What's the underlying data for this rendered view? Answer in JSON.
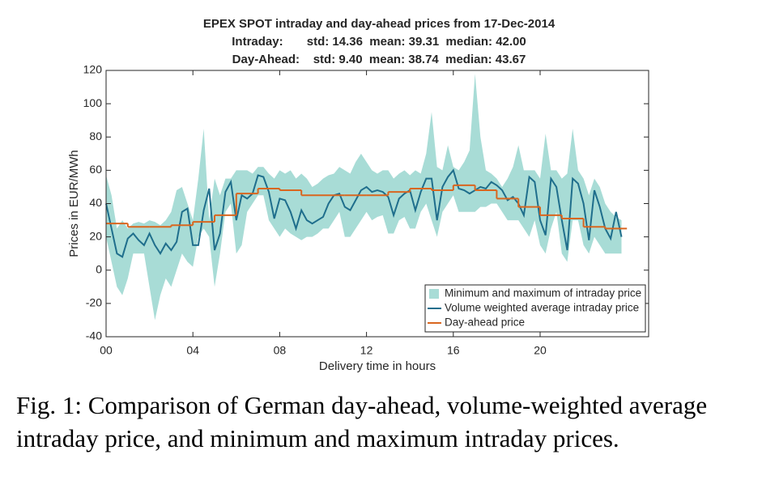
{
  "chart_data": {
    "type": "line",
    "title": [
      "EPEX SPOT intraday and day-ahead prices from 17-Dec-2014",
      "Intraday:       std: 14.36  mean: 39.31  median: 42.00",
      "Day-Ahead:    std: 9.40  mean: 38.74  median: 43.67"
    ],
    "xlabel": "Delivery time in hours",
    "ylabel": "Prices in EUR/MWh",
    "xlim": [
      0,
      25
    ],
    "ylim": [
      -40,
      120
    ],
    "xticks": [
      {
        "value": 0,
        "label": "00"
      },
      {
        "value": 4,
        "label": "04"
      },
      {
        "value": 8,
        "label": "08"
      },
      {
        "value": 12,
        "label": "12"
      },
      {
        "value": 16,
        "label": "16"
      },
      {
        "value": 20,
        "label": "20"
      }
    ],
    "yticks": [
      -40,
      -20,
      0,
      20,
      40,
      60,
      80,
      100,
      120
    ],
    "legend": "lower right",
    "series": [
      {
        "name": "Minimum and maximum of intraday price",
        "type": "band",
        "color": "#a8dcd6",
        "x": [
          0,
          0.25,
          0.5,
          0.75,
          1,
          1.25,
          1.5,
          1.75,
          2,
          2.25,
          2.5,
          2.75,
          3,
          3.25,
          3.5,
          3.75,
          4,
          4.25,
          4.5,
          4.75,
          5,
          5.25,
          5.5,
          5.75,
          6,
          6.25,
          6.5,
          6.75,
          7,
          7.25,
          7.5,
          7.75,
          8,
          8.25,
          8.5,
          8.75,
          9,
          9.25,
          9.5,
          9.75,
          10,
          10.25,
          10.5,
          10.75,
          11,
          11.25,
          11.5,
          11.75,
          12,
          12.25,
          12.5,
          12.75,
          13,
          13.25,
          13.5,
          13.75,
          14,
          14.25,
          14.5,
          14.75,
          15,
          15.25,
          15.5,
          15.75,
          16,
          16.25,
          16.5,
          16.75,
          17,
          17.25,
          17.5,
          17.75,
          18,
          18.25,
          18.5,
          18.75,
          19,
          19.25,
          19.5,
          19.75,
          20,
          20.25,
          20.5,
          20.75,
          21,
          21.25,
          21.5,
          21.75,
          22,
          22.25,
          22.5,
          22.75,
          23,
          23.25,
          23.5,
          23.75
        ],
        "lower": [
          20,
          5,
          -10,
          -15,
          -5,
          10,
          10,
          10,
          -10,
          -30,
          -15,
          -5,
          -10,
          0,
          10,
          5,
          2,
          20,
          25,
          20,
          -10,
          10,
          35,
          40,
          10,
          15,
          35,
          40,
          45,
          45,
          30,
          25,
          20,
          25,
          22,
          20,
          18,
          20,
          20,
          22,
          25,
          25,
          30,
          35,
          20,
          20,
          25,
          30,
          35,
          30,
          32,
          33,
          22,
          22,
          30,
          32,
          25,
          25,
          35,
          40,
          30,
          20,
          35,
          40,
          45,
          35,
          35,
          35,
          35,
          38,
          38,
          40,
          40,
          35,
          30,
          30,
          30,
          25,
          20,
          30,
          15,
          10,
          25,
          35,
          10,
          5,
          30,
          30,
          15,
          10,
          20,
          15,
          10,
          10,
          10,
          10
        ],
        "upper": [
          57,
          45,
          25,
          30,
          25,
          28,
          29,
          28,
          30,
          29,
          27,
          30,
          35,
          48,
          50,
          40,
          30,
          55,
          85,
          30,
          55,
          45,
          55,
          55,
          60,
          60,
          60,
          58,
          62,
          62,
          58,
          55,
          60,
          58,
          60,
          55,
          58,
          55,
          50,
          52,
          55,
          57,
          58,
          62,
          60,
          58,
          65,
          70,
          65,
          60,
          58,
          60,
          60,
          55,
          58,
          60,
          57,
          60,
          58,
          70,
          95,
          62,
          60,
          75,
          62,
          60,
          65,
          72,
          118,
          80,
          60,
          58,
          55,
          50,
          55,
          62,
          75,
          60,
          60,
          60,
          55,
          82,
          60,
          60,
          55,
          58,
          85,
          60,
          55,
          45,
          55,
          50,
          40,
          35,
          32,
          30
        ]
      },
      {
        "name": "Volume weighted average intraday price",
        "color": "#1f6e8c",
        "x": [
          0,
          0.25,
          0.5,
          0.75,
          1,
          1.25,
          1.5,
          1.75,
          2,
          2.25,
          2.5,
          2.75,
          3,
          3.25,
          3.5,
          3.75,
          4,
          4.25,
          4.5,
          4.75,
          5,
          5.25,
          5.5,
          5.75,
          6,
          6.25,
          6.5,
          6.75,
          7,
          7.25,
          7.5,
          7.75,
          8,
          8.25,
          8.5,
          8.75,
          9,
          9.25,
          9.5,
          9.75,
          10,
          10.25,
          10.5,
          10.75,
          11,
          11.25,
          11.5,
          11.75,
          12,
          12.25,
          12.5,
          12.75,
          13,
          13.25,
          13.5,
          13.75,
          14,
          14.25,
          14.5,
          14.75,
          15,
          15.25,
          15.5,
          15.75,
          16,
          16.25,
          16.5,
          16.75,
          17,
          17.25,
          17.5,
          17.75,
          18,
          18.25,
          18.5,
          18.75,
          19,
          19.25,
          19.5,
          19.75,
          20,
          20.25,
          20.5,
          20.75,
          21,
          21.25,
          21.5,
          21.75,
          22,
          22.25,
          22.5,
          22.75,
          23,
          23.25,
          23.5,
          23.75
        ],
        "values": [
          40,
          25,
          10,
          8,
          19,
          22,
          18,
          15,
          22,
          15,
          10,
          16,
          12,
          17,
          35,
          37,
          15,
          15,
          36,
          49,
          12,
          22,
          47,
          53,
          30,
          45,
          43,
          46,
          57,
          56,
          47,
          31,
          43,
          42,
          35,
          25,
          36,
          30,
          28,
          30,
          32,
          40,
          45,
          46,
          38,
          36,
          42,
          48,
          50,
          47,
          48,
          47,
          44,
          33,
          43,
          46,
          48,
          36,
          47,
          55,
          55,
          30,
          50,
          56,
          60,
          49,
          48,
          46,
          48,
          50,
          49,
          53,
          51,
          48,
          42,
          44,
          40,
          33,
          56,
          53,
          30,
          21,
          55,
          50,
          30,
          12,
          55,
          52,
          40,
          18,
          48,
          38,
          25,
          19,
          35,
          20
        ]
      },
      {
        "name": "Day-ahead price",
        "color": "#d9661f",
        "drawstyle": "steps-post",
        "x": [
          0,
          1,
          2,
          3,
          4,
          5,
          6,
          7,
          8,
          9,
          10,
          11,
          12,
          13,
          14,
          15,
          16,
          17,
          18,
          19,
          20,
          21,
          22,
          23
        ],
        "values": [
          28,
          26,
          26,
          27,
          29,
          33,
          46,
          49,
          48,
          45,
          45,
          45,
          45,
          47,
          49,
          48,
          51,
          48,
          43,
          38,
          33,
          31,
          26,
          25
        ]
      }
    ]
  },
  "caption": "Fig. 1: Comparison of German day-ahead, volume-weighted average intraday price, and minimum and maximum intraday prices."
}
